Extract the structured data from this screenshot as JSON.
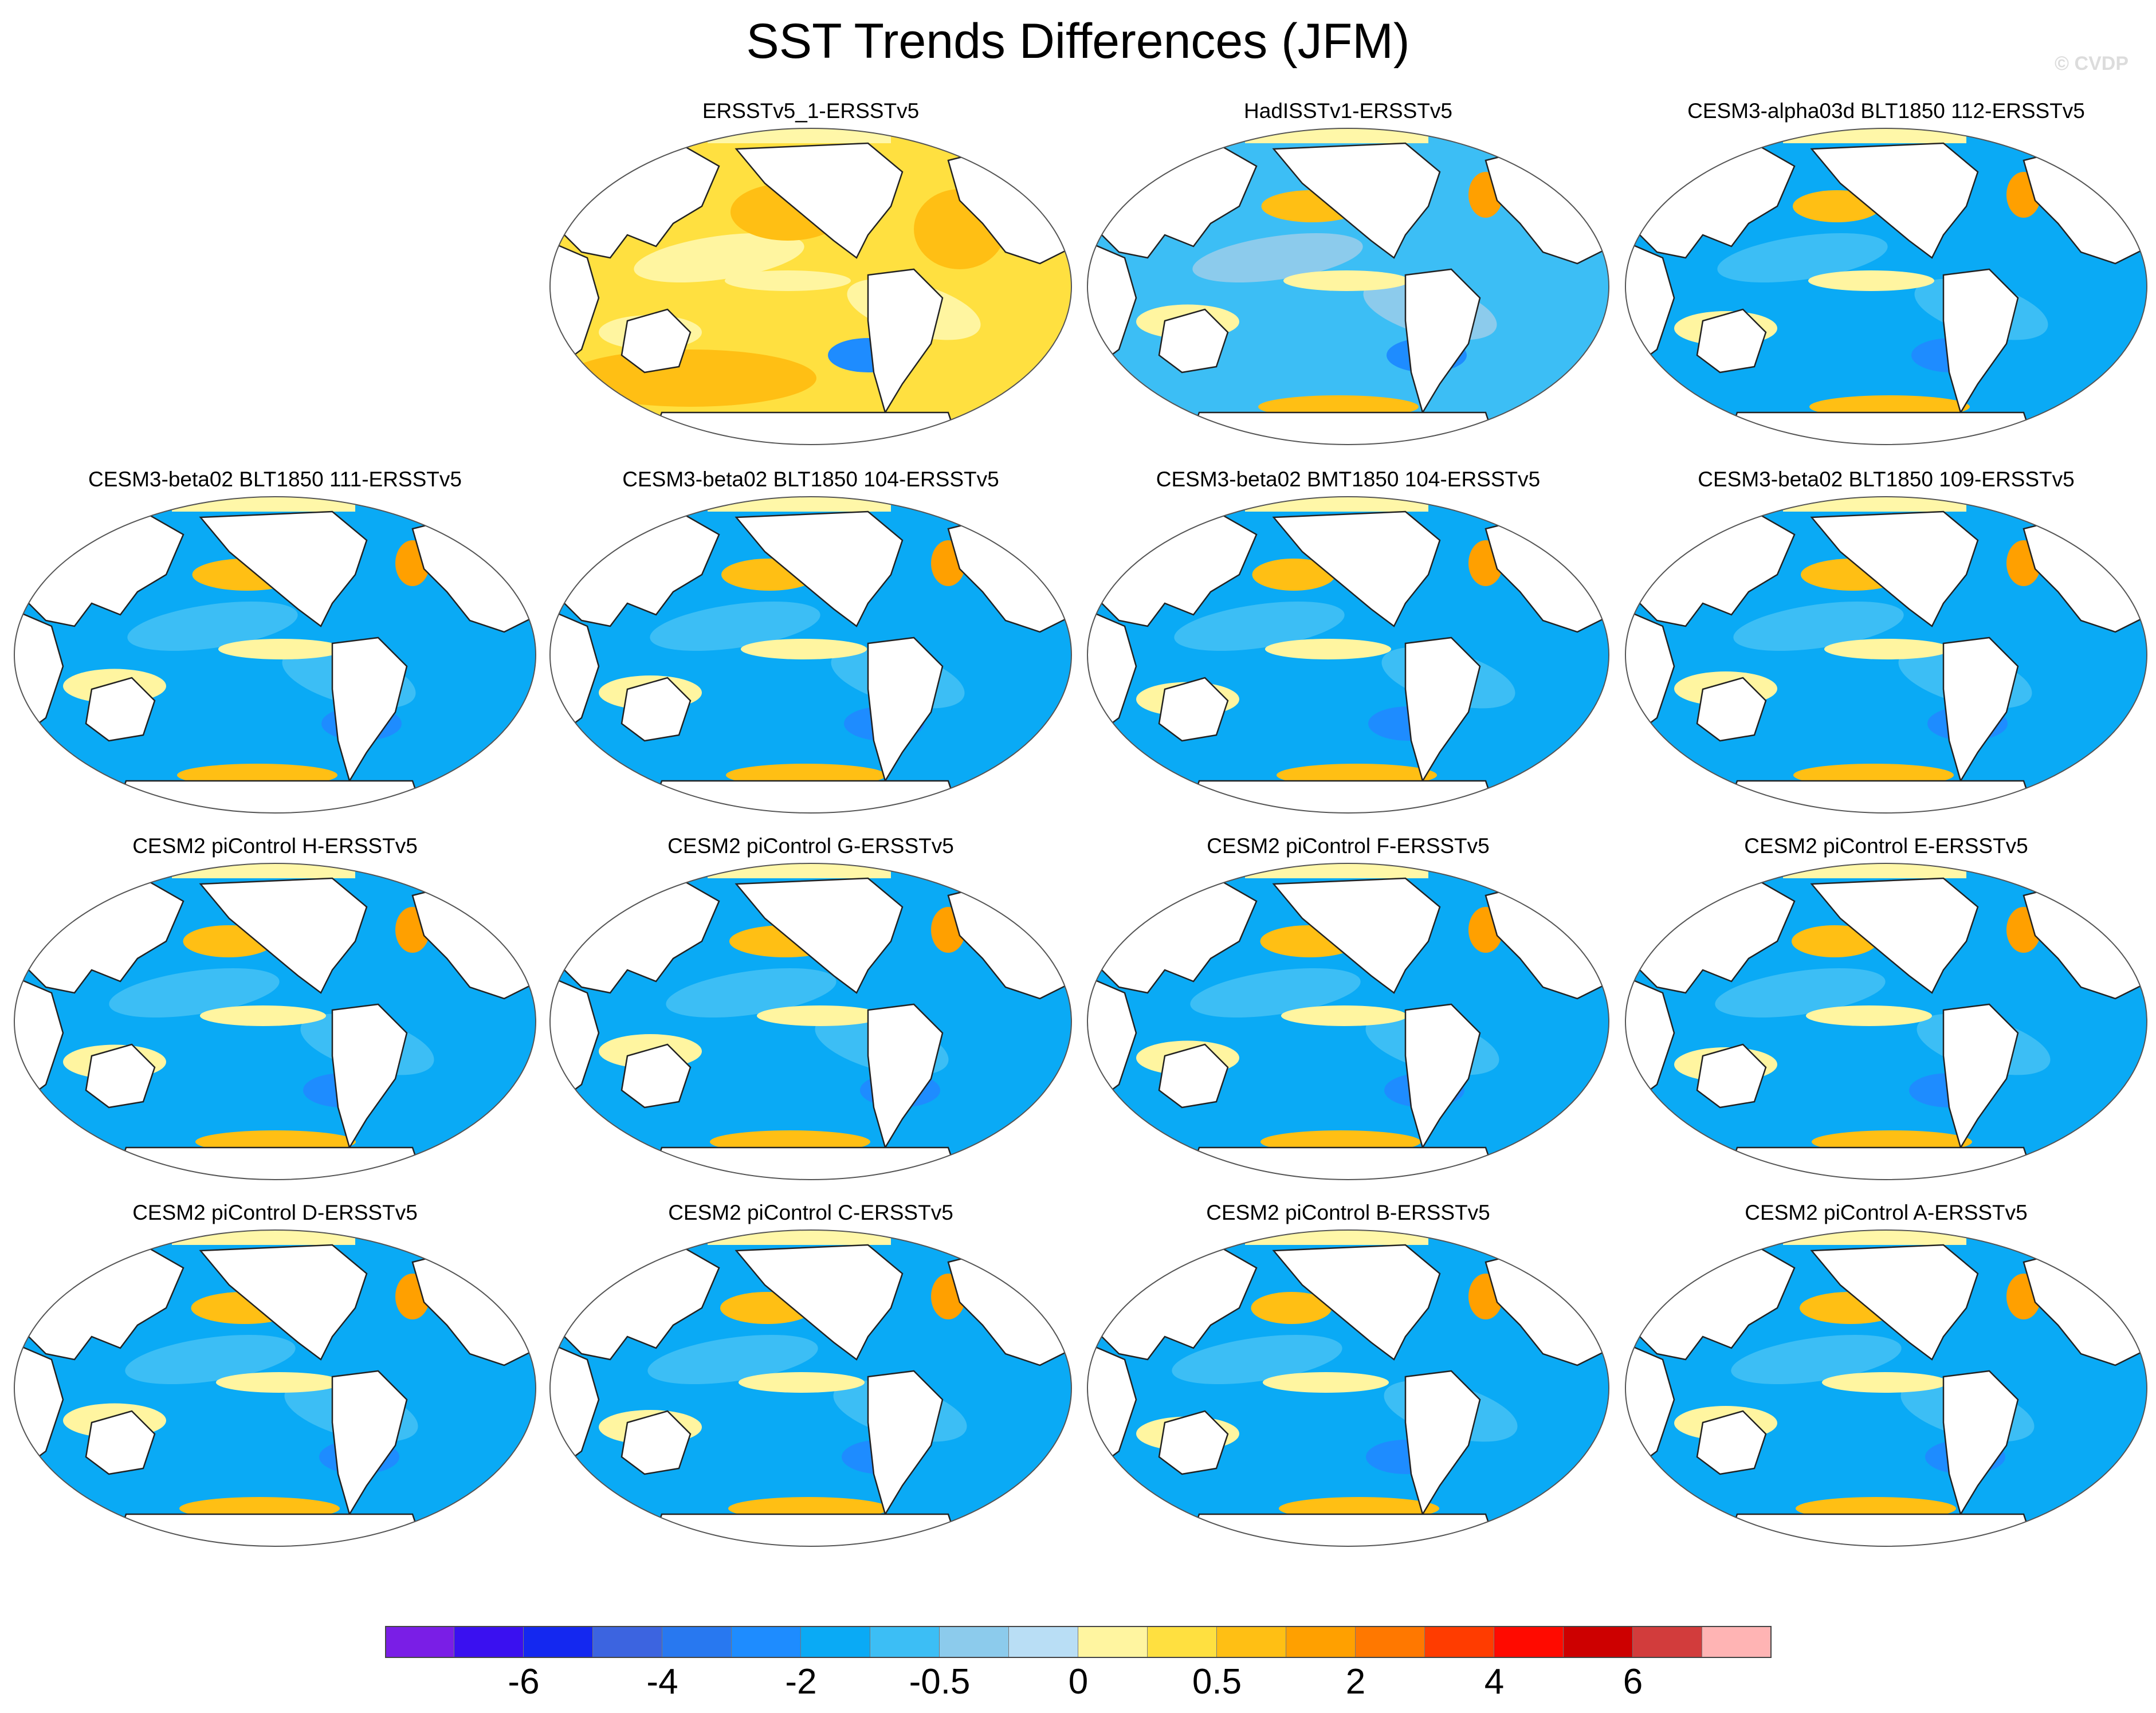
{
  "title": "SST Trends Differences (JFM)",
  "watermark": "© CVDP",
  "colors": {
    "land": "#ffffff",
    "coast": "#222222",
    "sea_ice": "#fff7a8"
  },
  "panels": [
    {
      "title": "ERSSTv5_1-ERSSTv5",
      "row": 0,
      "col": 1,
      "pattern": "warm"
    },
    {
      "title": "HadISSTv1-ERSSTv5",
      "row": 0,
      "col": 2,
      "pattern": "mixed"
    },
    {
      "title": "CESM3-alpha03d BLT1850 112-ERSSTv5",
      "row": 0,
      "col": 3,
      "pattern": "cool"
    },
    {
      "title": "CESM3-beta02 BLT1850 111-ERSSTv5",
      "row": 1,
      "col": 0,
      "pattern": "cool"
    },
    {
      "title": "CESM3-beta02 BLT1850 104-ERSSTv5",
      "row": 1,
      "col": 1,
      "pattern": "cool"
    },
    {
      "title": "CESM3-beta02 BMT1850 104-ERSSTv5",
      "row": 1,
      "col": 2,
      "pattern": "cool"
    },
    {
      "title": "CESM3-beta02 BLT1850 109-ERSSTv5",
      "row": 1,
      "col": 3,
      "pattern": "cool"
    },
    {
      "title": "CESM2 piControl H-ERSSTv5",
      "row": 2,
      "col": 0,
      "pattern": "cool"
    },
    {
      "title": "CESM2 piControl G-ERSSTv5",
      "row": 2,
      "col": 1,
      "pattern": "cool"
    },
    {
      "title": "CESM2 piControl F-ERSSTv5",
      "row": 2,
      "col": 2,
      "pattern": "cool"
    },
    {
      "title": "CESM2 piControl E-ERSSTv5",
      "row": 2,
      "col": 3,
      "pattern": "cool"
    },
    {
      "title": "CESM2 piControl D-ERSSTv5",
      "row": 3,
      "col": 0,
      "pattern": "cool"
    },
    {
      "title": "CESM2 piControl C-ERSSTv5",
      "row": 3,
      "col": 1,
      "pattern": "cool"
    },
    {
      "title": "CESM2 piControl B-ERSSTv5",
      "row": 3,
      "col": 2,
      "pattern": "cool"
    },
    {
      "title": "CESM2 piControl A-ERSSTv5",
      "row": 3,
      "col": 3,
      "pattern": "cool"
    }
  ],
  "colorbar": {
    "colors": [
      "#7a1ee6",
      "#3a10f0",
      "#1428f0",
      "#3c64e0",
      "#2878f0",
      "#1e8cff",
      "#0aaaf5",
      "#3cbef5",
      "#8ccbec",
      "#b9def5",
      "#fff5a0",
      "#ffe040",
      "#ffbf14",
      "#ffa000",
      "#ff7800",
      "#ff3c00",
      "#ff0a00",
      "#cd0000",
      "#d23c3c",
      "#ffb4b4"
    ],
    "labels": [
      {
        "text": "-6",
        "boundary": 2
      },
      {
        "text": "-4",
        "boundary": 4
      },
      {
        "text": "-2",
        "boundary": 6
      },
      {
        "text": "-0.5",
        "boundary": 8
      },
      {
        "text": "0",
        "boundary": 10
      },
      {
        "text": "0.5",
        "boundary": 12
      },
      {
        "text": "2",
        "boundary": 14
      },
      {
        "text": "4",
        "boundary": 16
      },
      {
        "text": "6",
        "boundary": 18
      }
    ]
  }
}
